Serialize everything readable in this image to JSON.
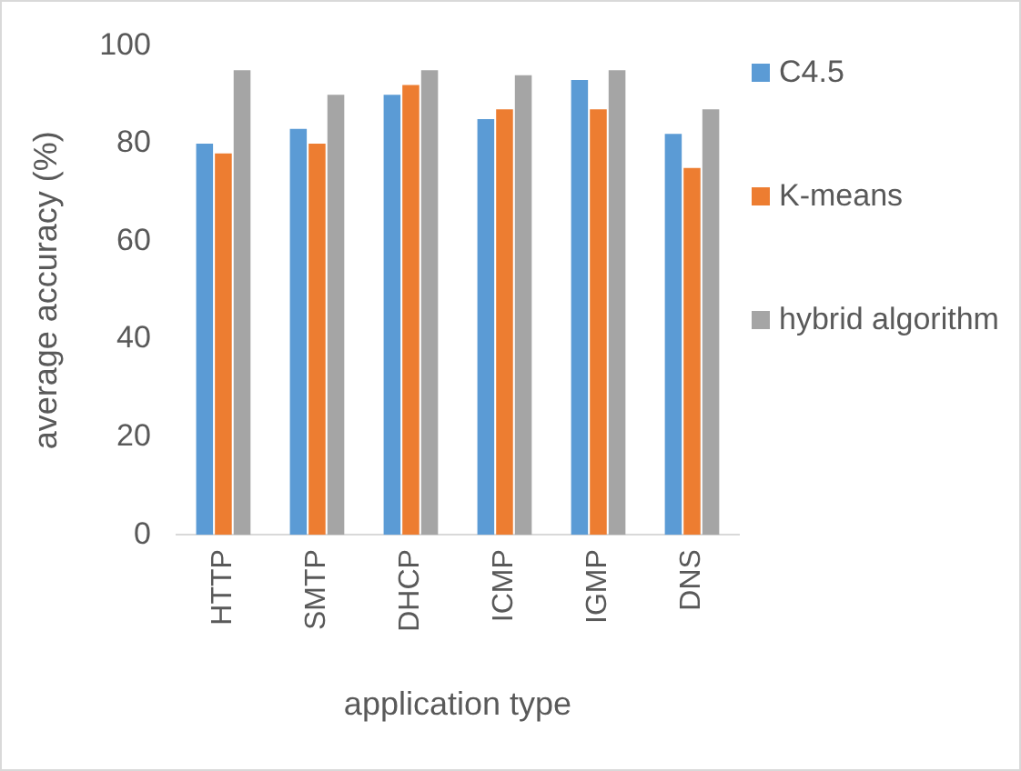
{
  "chart_data": {
    "type": "bar",
    "xlabel": "application type",
    "ylabel": "average accuracy (%)",
    "categories": [
      "HTTP",
      "SMTP",
      "DHCP",
      "ICMP",
      "IGMP",
      "DNS"
    ],
    "series": [
      {
        "name": "C4.5",
        "color": "#5b9bd5",
        "values": [
          80,
          83,
          90,
          85,
          93,
          82
        ]
      },
      {
        "name": "K-means",
        "color": "#ed7d31",
        "values": [
          78,
          80,
          92,
          87,
          87,
          75
        ]
      },
      {
        "name": "hybrid algorithm",
        "color": "#a5a5a5",
        "values": [
          95,
          90,
          95,
          94,
          95,
          87
        ]
      }
    ],
    "ylim": [
      0,
      100
    ],
    "yticks": [
      0,
      20,
      40,
      60,
      80,
      100
    ],
    "grid": false,
    "legend": "right"
  }
}
